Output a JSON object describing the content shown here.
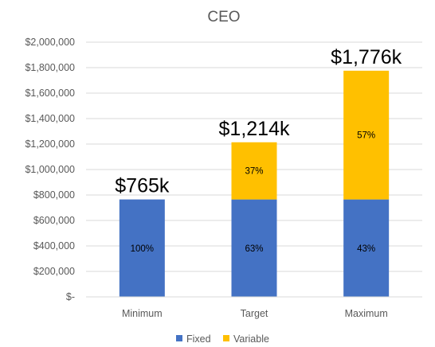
{
  "chart_data": {
    "type": "bar",
    "stacked": true,
    "title": "CEO",
    "categories": [
      "Minimum",
      "Target",
      "Maximum"
    ],
    "series": [
      {
        "name": "Fixed",
        "color": "#4472C4",
        "values": [
          765000,
          765000,
          765000
        ],
        "labels": [
          "100%",
          "63%",
          "43%"
        ]
      },
      {
        "name": "Variable",
        "color": "#FFC000",
        "values": [
          0,
          449000,
          1011000
        ],
        "labels": [
          "",
          "37%",
          "57%"
        ]
      }
    ],
    "totals": [
      765000,
      1214000,
      1776000
    ],
    "total_labels": [
      "$765k",
      "$1,214k",
      "$1,776k"
    ],
    "ylim": [
      0,
      2000000
    ],
    "yticks": [
      0,
      200000,
      400000,
      600000,
      800000,
      1000000,
      1200000,
      1400000,
      1600000,
      1800000,
      2000000
    ],
    "ytick_labels": [
      "$-",
      "$200,000",
      "$400,000",
      "$600,000",
      "$800,000",
      "$1,000,000",
      "$1,200,000",
      "$1,400,000",
      "$1,600,000",
      "$1,800,000",
      "$2,000,000"
    ],
    "grid": true,
    "legend": "bottom"
  }
}
